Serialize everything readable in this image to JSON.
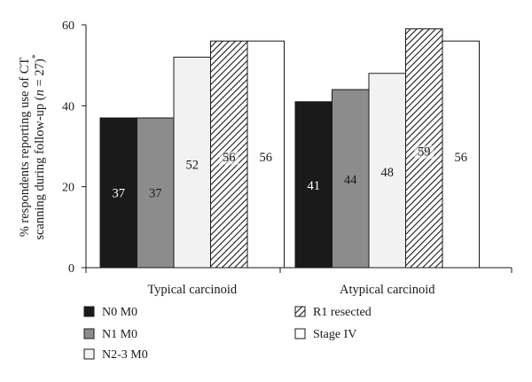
{
  "chart_data": {
    "type": "bar",
    "ylabel_parts": [
      "% respondents reporting use of CT",
      "scanning during follow-up (",
      "n",
      " = 27)",
      "*"
    ],
    "ylim": [
      0,
      60
    ],
    "yticks": [
      "0",
      "20",
      "40",
      "60"
    ],
    "categories": [
      "Typical carcinoid",
      "Atypical carcinoid"
    ],
    "series": [
      {
        "name": "N0 M0",
        "values": [
          37,
          41
        ],
        "fill": "#1a1a1a",
        "pattern": "solid",
        "label_color": "#ffffff"
      },
      {
        "name": "N1 M0",
        "values": [
          37,
          44
        ],
        "fill": "#8c8c8c",
        "pattern": "solid",
        "label_color": "#1a1a1a"
      },
      {
        "name": "N2-3 M0",
        "values": [
          52,
          48
        ],
        "fill": "#f2f2f2",
        "pattern": "solid",
        "label_color": "#1a1a1a"
      },
      {
        "name": "R1 resected",
        "values": [
          56,
          59
        ],
        "fill": "#ffffff",
        "pattern": "hatch",
        "label_color": "#1a1a1a"
      },
      {
        "name": "Stage IV",
        "values": [
          56,
          56
        ],
        "fill": "#ffffff",
        "pattern": "solid",
        "label_color": "#1a1a1a"
      }
    ],
    "data_labels": [
      [
        "37",
        "41"
      ],
      [
        "37",
        "44"
      ],
      [
        "52",
        "48"
      ],
      [
        "56",
        "59"
      ],
      [
        "56",
        "56"
      ]
    ],
    "legend_position": "bottom",
    "grid": false
  }
}
